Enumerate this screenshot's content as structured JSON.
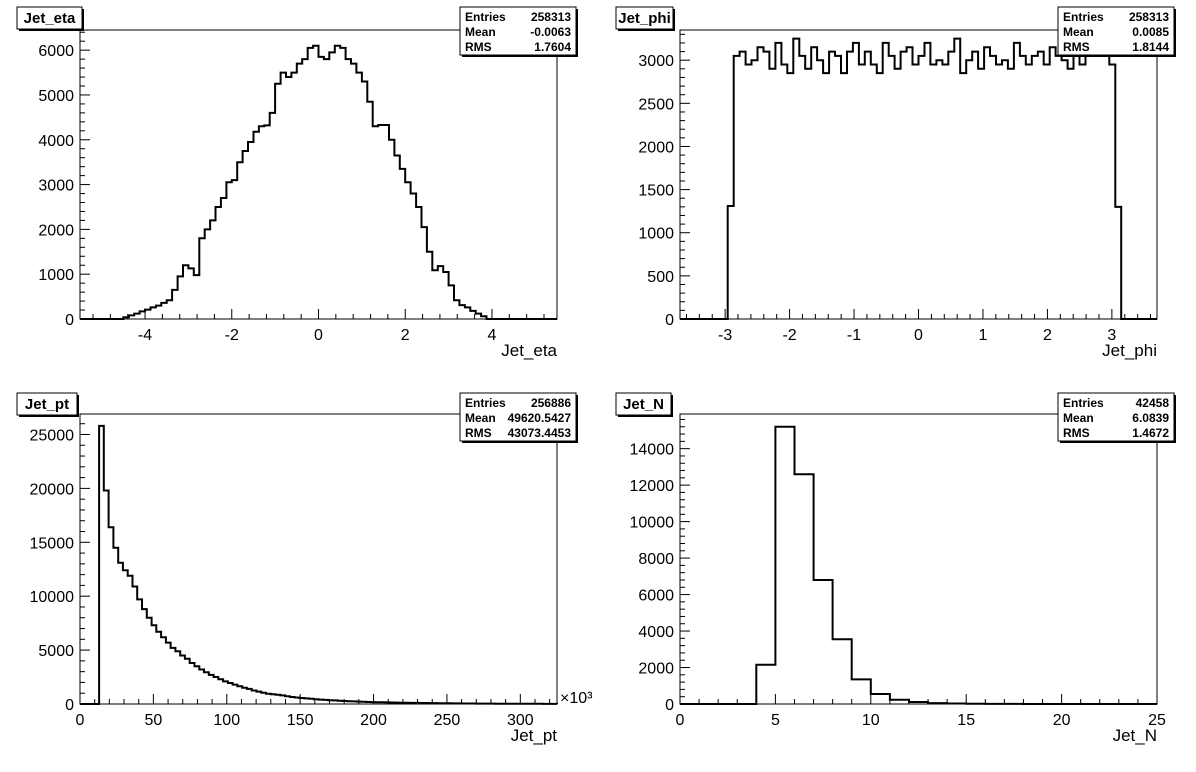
{
  "chart_data": [
    {
      "type": "bar",
      "title": "Jet_eta",
      "xlabel": "Jet_eta",
      "ylabel": "",
      "xlim": [
        -5.5,
        5.5
      ],
      "ylim": [
        0,
        6450
      ],
      "x_ticks": [
        -4,
        -2,
        0,
        2,
        4
      ],
      "y_ticks": [
        0,
        1000,
        2000,
        3000,
        4000,
        5000,
        6000
      ],
      "x_tick_labels": [
        "-4",
        "-2",
        "0",
        "2",
        "4"
      ],
      "y_tick_labels": [
        "0",
        "1000",
        "2000",
        "3000",
        "4000",
        "5000",
        "6000"
      ],
      "x_exponent": "",
      "stats": {
        "Entries": "258313",
        "Mean": "-0.0063",
        "RMS": "1.7604"
      },
      "bins": {
        "xmin": -5.5,
        "xmax": 5.5
      },
      "values": [
        0,
        0,
        0,
        0,
        0,
        0,
        0,
        0,
        40,
        80,
        120,
        170,
        210,
        260,
        300,
        360,
        420,
        650,
        950,
        1200,
        1130,
        980,
        1800,
        2000,
        2200,
        2500,
        2700,
        3050,
        3100,
        3500,
        3750,
        3950,
        4180,
        4300,
        4320,
        4600,
        5250,
        5500,
        5400,
        5500,
        5700,
        5800,
        6050,
        6100,
        5850,
        5800,
        5950,
        6100,
        6050,
        5800,
        5700,
        5500,
        5300,
        4850,
        4300,
        4330,
        4330,
        4000,
        3650,
        3350,
        3050,
        2800,
        2500,
        2050,
        1500,
        1090,
        1180,
        1050,
        750,
        420,
        310,
        260,
        180,
        120,
        60,
        0,
        0,
        0,
        0,
        0,
        0,
        0,
        0,
        0,
        0,
        0,
        0,
        0
      ]
    },
    {
      "type": "bar",
      "title": "Jet_phi",
      "xlabel": "Jet_phi",
      "ylabel": "",
      "xlim": [
        -3.7,
        3.7
      ],
      "ylim": [
        0,
        3350
      ],
      "x_ticks": [
        -3,
        -2,
        -1,
        0,
        1,
        2,
        3
      ],
      "y_ticks": [
        0,
        500,
        1000,
        1500,
        2000,
        2500,
        3000
      ],
      "x_tick_labels": [
        "-3",
        "-2",
        "-1",
        "0",
        "1",
        "2",
        "3"
      ],
      "y_tick_labels": [
        "0",
        "500",
        "1000",
        "1500",
        "2000",
        "2500",
        "3000"
      ],
      "x_exponent": "",
      "stats": {
        "Entries": "258313",
        "Mean": "0.0085",
        "RMS": "1.8144"
      },
      "bins": {
        "xmin": -3.7,
        "xmax": 3.7
      },
      "values": [
        0,
        0,
        0,
        0,
        0,
        0,
        0,
        0,
        1310,
        3050,
        3100,
        2950,
        3000,
        3150,
        3100,
        2900,
        3200,
        2950,
        2850,
        3250,
        3050,
        2900,
        3150,
        3000,
        2850,
        3100,
        3050,
        2850,
        3100,
        3200,
        2950,
        3100,
        2950,
        2850,
        3200,
        3050,
        2900,
        3100,
        3150,
        2950,
        3050,
        3200,
        2950,
        3000,
        2950,
        3100,
        3250,
        2850,
        3000,
        3100,
        2900,
        3150,
        3050,
        2950,
        3000,
        2900,
        3200,
        3050,
        2950,
        3050,
        3100,
        2950,
        3150,
        3050,
        3000,
        2900,
        3250,
        2950,
        3050,
        3250,
        3050,
        3100,
        2950,
        1300,
        0,
        0,
        0,
        0,
        0,
        0
      ]
    },
    {
      "type": "bar",
      "title": "Jet_pt",
      "xlabel": "Jet_pt",
      "ylabel": "",
      "xlim": [
        0,
        325
      ],
      "ylim": [
        0,
        26900
      ],
      "x_ticks": [
        0,
        50,
        100,
        150,
        200,
        250,
        300
      ],
      "y_ticks": [
        0,
        5000,
        10000,
        15000,
        20000,
        25000
      ],
      "x_tick_labels": [
        "0",
        "50",
        "100",
        "150",
        "200",
        "250",
        "300"
      ],
      "y_tick_labels": [
        "0",
        "5000",
        "10000",
        "15000",
        "20000",
        "25000"
      ],
      "x_exponent": "×10³",
      "stats": {
        "Entries": "256886",
        "Mean": "49620.5427",
        "RMS": "43073.4453"
      },
      "bins": {
        "xmin": 0,
        "xmax": 325
      },
      "values": [
        0,
        0,
        0,
        0,
        25800,
        19800,
        16400,
        14500,
        13100,
        12400,
        11900,
        10900,
        9700,
        8800,
        8000,
        7300,
        6700,
        6200,
        5700,
        5200,
        4900,
        4500,
        4200,
        3800,
        3500,
        3200,
        2950,
        2700,
        2500,
        2300,
        2100,
        1950,
        1800,
        1650,
        1500,
        1400,
        1250,
        1150,
        1050,
        950,
        900,
        850,
        800,
        720,
        650,
        600,
        560,
        520,
        480,
        440,
        410,
        380,
        350,
        330,
        300,
        280,
        260,
        240,
        220,
        200,
        190,
        180,
        170,
        160,
        150,
        140,
        130,
        120,
        110,
        105,
        100,
        95,
        90,
        85,
        80,
        75,
        70,
        65,
        60,
        55,
        50,
        45,
        42,
        40,
        38,
        36,
        34,
        32,
        30,
        28,
        26,
        24,
        22,
        20,
        18,
        16,
        14,
        12,
        10,
        8
      ]
    },
    {
      "type": "bar",
      "title": "Jet_N",
      "xlabel": "Jet_N",
      "ylabel": "",
      "xlim": [
        0,
        25
      ],
      "ylim": [
        0,
        15900
      ],
      "x_ticks": [
        0,
        5,
        10,
        15,
        20,
        25
      ],
      "y_ticks": [
        0,
        2000,
        4000,
        6000,
        8000,
        10000,
        12000,
        14000
      ],
      "x_tick_labels": [
        "0",
        "5",
        "10",
        "15",
        "20",
        "25"
      ],
      "y_tick_labels": [
        "0",
        "2000",
        "4000",
        "6000",
        "8000",
        "10000",
        "12000",
        "14000"
      ],
      "x_exponent": "",
      "stats": {
        "Entries": "42458",
        "Mean": "6.0839",
        "RMS": "1.4672"
      },
      "bins": {
        "xmin": 0,
        "xmax": 25
      },
      "values": [
        0,
        0,
        0,
        0,
        2150,
        15200,
        12600,
        6800,
        3550,
        1350,
        550,
        230,
        110,
        50,
        25,
        12,
        6,
        3,
        2,
        1,
        0,
        0,
        0,
        0,
        0
      ]
    }
  ]
}
